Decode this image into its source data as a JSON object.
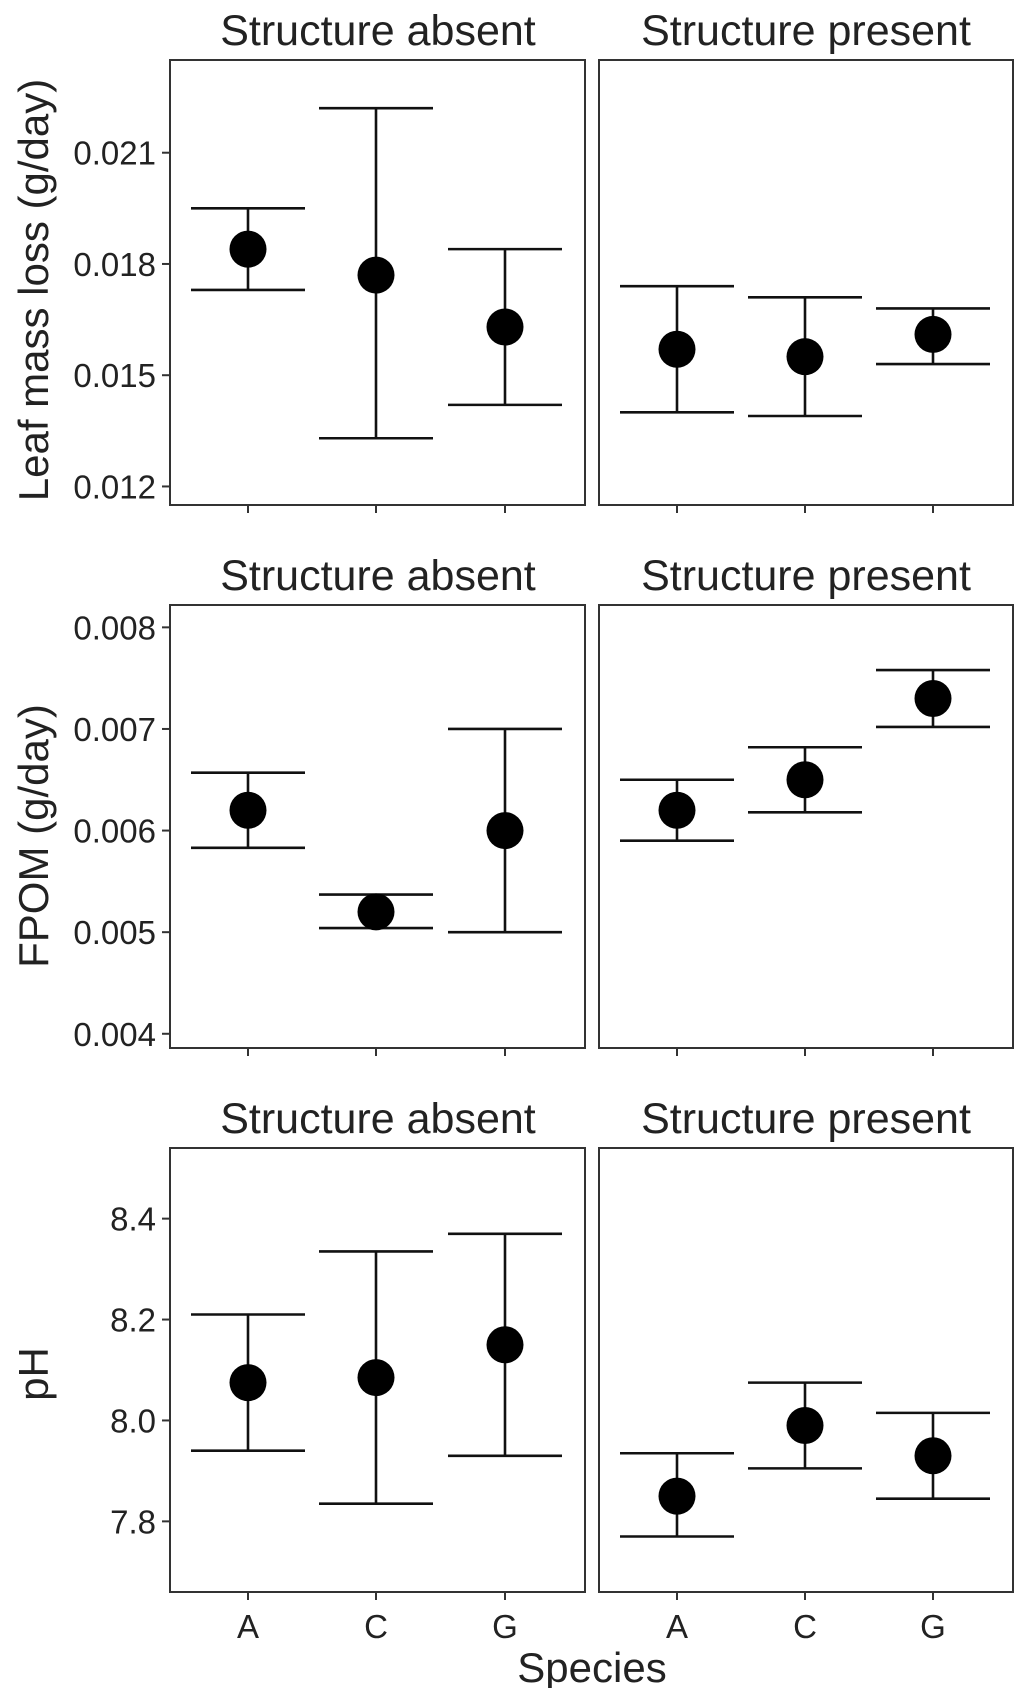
{
  "chart_data": {
    "type": "scatter",
    "categories": [
      "A",
      "C",
      "G"
    ],
    "facets": [
      "Structure absent",
      "Structure present"
    ],
    "xlabel": "Species",
    "rows": [
      {
        "ylabel": "Leaf mass loss (g/day)",
        "ylim": [
          0.0115,
          0.0235
        ],
        "yticks": [
          "0.012",
          "0.015",
          "0.018",
          "0.021"
        ],
        "panels": [
          {
            "title": "Structure absent",
            "points": [
              {
                "category": "A",
                "mean": 0.0184,
                "lower": 0.0173,
                "upper": 0.0195
              },
              {
                "category": "C",
                "mean": 0.0177,
                "lower": 0.0133,
                "upper": 0.0222
              },
              {
                "category": "G",
                "mean": 0.0163,
                "lower": 0.0142,
                "upper": 0.0184
              }
            ]
          },
          {
            "title": "Structure present",
            "points": [
              {
                "category": "A",
                "mean": 0.0157,
                "lower": 0.014,
                "upper": 0.0174
              },
              {
                "category": "C",
                "mean": 0.0155,
                "lower": 0.0139,
                "upper": 0.0171
              },
              {
                "category": "G",
                "mean": 0.0161,
                "lower": 0.0153,
                "upper": 0.0168
              }
            ]
          }
        ]
      },
      {
        "ylabel": "FPOM (g/day)",
        "ylim": [
          0.00386,
          0.00822
        ],
        "yticks": [
          "0.004",
          "0.005",
          "0.006",
          "0.007",
          "0.008"
        ],
        "panels": [
          {
            "title": "Structure absent",
            "points": [
              {
                "category": "A",
                "mean": 0.0062,
                "lower": 0.00583,
                "upper": 0.00657
              },
              {
                "category": "C",
                "mean": 0.0052,
                "lower": 0.00504,
                "upper": 0.00537
              },
              {
                "category": "G",
                "mean": 0.006,
                "lower": 0.005,
                "upper": 0.007
              }
            ]
          },
          {
            "title": "Structure present",
            "points": [
              {
                "category": "A",
                "mean": 0.0062,
                "lower": 0.0059,
                "upper": 0.0065
              },
              {
                "category": "C",
                "mean": 0.0065,
                "lower": 0.00618,
                "upper": 0.00682
              },
              {
                "category": "G",
                "mean": 0.0073,
                "lower": 0.00702,
                "upper": 0.00758
              }
            ]
          }
        ]
      },
      {
        "ylabel": "pH",
        "ylim": [
          7.66,
          8.54
        ],
        "yticks": [
          "7.8",
          "8.0",
          "8.2",
          "8.4"
        ],
        "panels": [
          {
            "title": "Structure absent",
            "points": [
              {
                "category": "A",
                "mean": 8.075,
                "lower": 7.94,
                "upper": 8.21
              },
              {
                "category": "C",
                "mean": 8.085,
                "lower": 7.835,
                "upper": 8.335
              },
              {
                "category": "G",
                "mean": 8.15,
                "lower": 7.93,
                "upper": 8.37
              }
            ]
          },
          {
            "title": "Structure present",
            "points": [
              {
                "category": "A",
                "mean": 7.85,
                "lower": 7.77,
                "upper": 7.935
              },
              {
                "category": "C",
                "mean": 7.99,
                "lower": 7.905,
                "upper": 8.075
              },
              {
                "category": "G",
                "mean": 7.93,
                "lower": 7.845,
                "upper": 8.015
              }
            ]
          }
        ]
      }
    ],
    "grid": false,
    "legend": "none"
  }
}
